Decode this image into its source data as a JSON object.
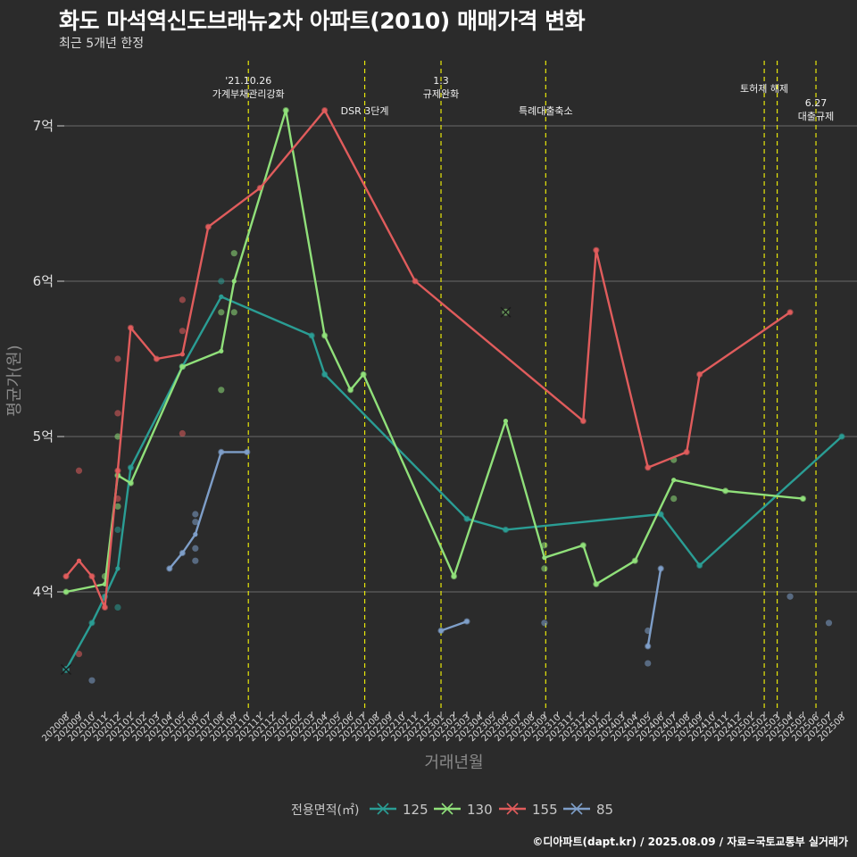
{
  "title": "화도 마석역신도브래뉴2차 아파트(2010) 매매가격 변화",
  "subtitle": "최근 5개년 한정",
  "caption": "©디아파트(dapt.kr) / 2025.08.09 / 자료=국토교통부 실거래가",
  "chart_data": {
    "type": "line",
    "xlabel": "거래년월",
    "ylabel": "평균가(원)",
    "ylim": [
      3.25,
      7.4
    ],
    "y_ticks": [
      {
        "value": 4,
        "label": "4억"
      },
      {
        "value": 5,
        "label": "5억"
      },
      {
        "value": 6,
        "label": "6억"
      },
      {
        "value": 7,
        "label": "7억"
      }
    ],
    "categories": [
      "202008",
      "202009",
      "202010",
      "202011",
      "202012",
      "202101",
      "202102",
      "202103",
      "202104",
      "202105",
      "202106",
      "202107",
      "202108",
      "202109",
      "202110",
      "202111",
      "202112",
      "202201",
      "202202",
      "202203",
      "202204",
      "202205",
      "202206",
      "202207",
      "202208",
      "202209",
      "202210",
      "202211",
      "202212",
      "202301",
      "202302",
      "202303",
      "202304",
      "202305",
      "202306",
      "202307",
      "202308",
      "202309",
      "202310",
      "202311",
      "202312",
      "202401",
      "202402",
      "202403",
      "202404",
      "202405",
      "202406",
      "202407",
      "202408",
      "202409",
      "202410",
      "202411",
      "202412",
      "202501",
      "202502",
      "202503",
      "202504",
      "202505",
      "202506",
      "202507",
      "202508"
    ],
    "legend_title": "전용면적(㎡)",
    "grid": true,
    "background": "#2b2b2b",
    "events": [
      {
        "x": 14.1,
        "lines": [
          "'21.10.26",
          "가계부채관리강화"
        ],
        "pos": "top"
      },
      {
        "x": 23.1,
        "lines": [
          "DSR 3단계"
        ],
        "pos": "low"
      },
      {
        "x": 29.0,
        "lines": [
          "1.3",
          "규제완화"
        ],
        "pos": "top"
      },
      {
        "x": 37.1,
        "lines": [
          "특례대출축소"
        ],
        "pos": "low"
      },
      {
        "x": 54.0,
        "lines": [
          "토허제 해제"
        ],
        "pos": "mid"
      },
      {
        "x": 55.0,
        "lines": [],
        "pos": "none"
      },
      {
        "x": 58.0,
        "lines": [
          "6.27",
          "대출규제"
        ],
        "pos": "low2"
      }
    ],
    "series": [
      {
        "name": "125",
        "color": "#2a9d94",
        "line": [
          [
            0,
            3.5
          ],
          [
            2,
            3.8
          ],
          [
            3,
            3.97
          ],
          [
            4,
            4.15
          ],
          [
            5,
            4.8
          ],
          [
            9,
            5.45
          ],
          [
            12,
            5.9
          ],
          [
            19,
            5.65
          ],
          [
            20,
            5.4
          ],
          [
            31,
            4.47
          ],
          [
            34,
            4.4
          ],
          [
            46,
            4.5
          ],
          [
            49,
            4.17
          ],
          [
            60,
            5.0
          ]
        ],
        "points": [
          [
            0,
            3.5
          ],
          [
            2,
            3.8
          ],
          [
            3,
            3.97
          ],
          [
            4,
            3.9
          ],
          [
            4,
            4.4
          ],
          [
            5,
            4.8
          ],
          [
            9,
            5.45
          ],
          [
            12,
            6.0
          ],
          [
            19,
            5.65
          ],
          [
            20,
            5.4
          ],
          [
            31,
            4.47
          ],
          [
            34,
            4.4
          ],
          [
            46,
            4.5
          ],
          [
            49,
            4.17
          ],
          [
            60,
            5.0
          ]
        ],
        "cross": [
          [
            0,
            3.5
          ]
        ]
      },
      {
        "name": "130",
        "color": "#90e07a",
        "line": [
          [
            0,
            4.0
          ],
          [
            3,
            4.05
          ],
          [
            4,
            4.75
          ],
          [
            5,
            4.7
          ],
          [
            9,
            5.45
          ],
          [
            12,
            5.55
          ],
          [
            13,
            6.0
          ],
          [
            17,
            7.1
          ],
          [
            20,
            5.65
          ],
          [
            22,
            5.3
          ],
          [
            23,
            5.4
          ],
          [
            30,
            4.1
          ],
          [
            34,
            5.1
          ],
          [
            37,
            4.22
          ],
          [
            40,
            4.3
          ],
          [
            41,
            4.05
          ],
          [
            44,
            4.2
          ],
          [
            47,
            4.72
          ],
          [
            51,
            4.65
          ],
          [
            57,
            4.6
          ]
        ],
        "points": [
          [
            0,
            4.0
          ],
          [
            3,
            4.1
          ],
          [
            4,
            4.55
          ],
          [
            4,
            5.0
          ],
          [
            4,
            4.75
          ],
          [
            5,
            4.7
          ],
          [
            9,
            5.45
          ],
          [
            12,
            5.8
          ],
          [
            12,
            5.3
          ],
          [
            13,
            5.8
          ],
          [
            13,
            6.18
          ],
          [
            17,
            7.1
          ],
          [
            20,
            5.65
          ],
          [
            22,
            5.3
          ],
          [
            23,
            5.4
          ],
          [
            30,
            4.1
          ],
          [
            37,
            4.3
          ],
          [
            37,
            4.15
          ],
          [
            40,
            4.3
          ],
          [
            41,
            4.05
          ],
          [
            44,
            4.2
          ],
          [
            47,
            4.85
          ],
          [
            47,
            4.6
          ],
          [
            51,
            4.65
          ],
          [
            57,
            4.6
          ]
        ],
        "cross": [
          [
            34,
            5.8
          ]
        ]
      },
      {
        "name": "155",
        "color": "#e05c5c",
        "line": [
          [
            0,
            4.1
          ],
          [
            1,
            4.2
          ],
          [
            2,
            4.1
          ],
          [
            3,
            3.9
          ],
          [
            4,
            4.78
          ],
          [
            5,
            5.7
          ],
          [
            7,
            5.5
          ],
          [
            9,
            5.53
          ],
          [
            11,
            6.35
          ],
          [
            15,
            6.6
          ],
          [
            20,
            7.1
          ],
          [
            27,
            6.0
          ],
          [
            40,
            5.1
          ],
          [
            41,
            6.2
          ],
          [
            45,
            4.8
          ],
          [
            48,
            4.9
          ],
          [
            49,
            5.4
          ],
          [
            56,
            5.8
          ]
        ],
        "points": [
          [
            0,
            4.1
          ],
          [
            1,
            4.78
          ],
          [
            1,
            3.6
          ],
          [
            2,
            4.1
          ],
          [
            3,
            3.9
          ],
          [
            4,
            5.5
          ],
          [
            4,
            5.15
          ],
          [
            4,
            4.6
          ],
          [
            4,
            4.78
          ],
          [
            5,
            5.7
          ],
          [
            7,
            5.5
          ],
          [
            9,
            5.88
          ],
          [
            9,
            5.68
          ],
          [
            9,
            5.02
          ],
          [
            11,
            6.35
          ],
          [
            15,
            6.6
          ],
          [
            20,
            7.1
          ],
          [
            27,
            6.0
          ],
          [
            40,
            5.1
          ],
          [
            41,
            6.2
          ],
          [
            45,
            4.8
          ],
          [
            48,
            4.9
          ],
          [
            49,
            5.4
          ],
          [
            56,
            5.8
          ]
        ],
        "cross": []
      },
      {
        "name": "85",
        "color": "#7e9ec8",
        "line_segments": [
          [
            [
              8,
              4.15
            ],
            [
              9,
              4.25
            ],
            [
              10,
              4.37
            ],
            [
              12,
              4.9
            ],
            [
              14,
              4.9
            ]
          ],
          [
            [
              29,
              3.75
            ],
            [
              31,
              3.81
            ]
          ],
          [
            [
              45,
              3.65
            ],
            [
              46,
              4.15
            ]
          ]
        ],
        "points": [
          [
            2,
            3.43
          ],
          [
            8,
            4.15
          ],
          [
            9,
            4.25
          ],
          [
            10,
            4.5
          ],
          [
            10,
            4.45
          ],
          [
            10,
            4.28
          ],
          [
            10,
            4.2
          ],
          [
            12,
            4.9
          ],
          [
            14,
            4.9
          ],
          [
            29,
            3.75
          ],
          [
            31,
            3.81
          ],
          [
            37,
            3.8
          ],
          [
            45,
            3.75
          ],
          [
            45,
            3.65
          ],
          [
            45,
            3.54
          ],
          [
            46,
            4.15
          ],
          [
            56,
            3.97
          ],
          [
            59,
            3.8
          ]
        ],
        "cross": []
      }
    ]
  }
}
